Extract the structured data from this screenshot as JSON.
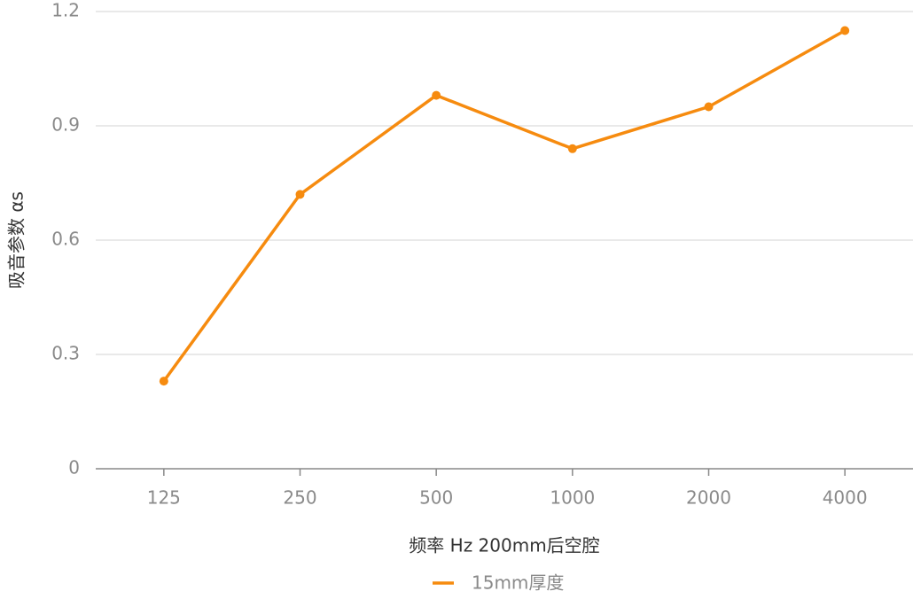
{
  "chart_data": {
    "type": "line",
    "x_label": "频率 Hz  200mm后空腔",
    "y_label": "吸音参数 αs",
    "categories": [
      "125",
      "250",
      "500",
      "1000",
      "2000",
      "4000"
    ],
    "series": [
      {
        "name": "15mm厚度",
        "color": "#f68b0f",
        "values": [
          0.23,
          0.72,
          0.98,
          0.84,
          0.95,
          1.15
        ]
      }
    ],
    "ylim": [
      0,
      1.2
    ],
    "yticks": [
      0,
      0.3,
      0.6,
      0.9,
      1.2
    ],
    "grid": true
  }
}
